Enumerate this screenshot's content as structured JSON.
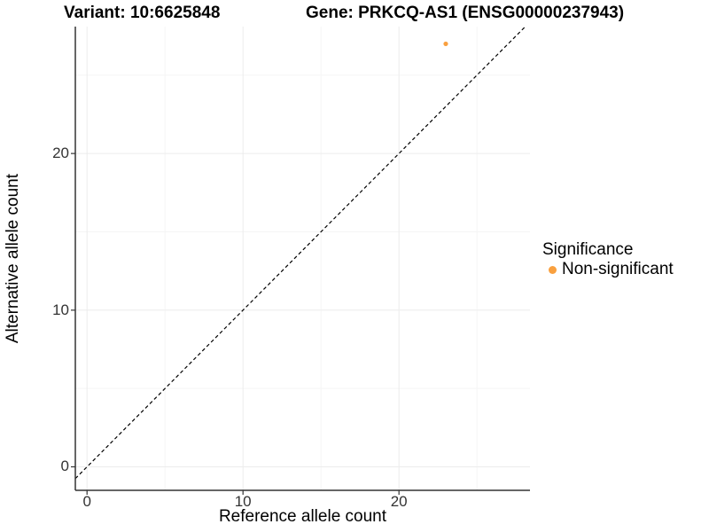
{
  "header": {
    "variant_title": "Variant: 10:6625848",
    "gene_title": "Gene: PRKCQ-AS1 (ENSG00000237943)"
  },
  "chart_data": {
    "type": "scatter",
    "xlabel": "Reference allele count",
    "ylabel": "Alternative allele count",
    "xlim": [
      -0.75,
      28.4
    ],
    "ylim": [
      -1.5,
      28.1
    ],
    "xticks": [
      0,
      10,
      20
    ],
    "yticks": [
      0,
      10,
      20
    ],
    "minor_xticks": [
      5,
      15,
      25
    ],
    "minor_yticks": [
      5,
      15,
      25
    ],
    "grid": true,
    "identity_line": {
      "style": "dashed",
      "slope": 1,
      "intercept": 0,
      "color": "#000000"
    },
    "series": [
      {
        "name": "Non-significant",
        "color": "#F9A03F",
        "points": [
          {
            "x": 23,
            "y": 27
          }
        ]
      }
    ],
    "legend": {
      "title": "Significance",
      "position": "right",
      "items": [
        {
          "label": "Non-significant",
          "color": "#F9A03F"
        }
      ]
    }
  },
  "colors": {
    "background": "#FFFFFF",
    "axis": "#333333",
    "tick_text": "#333333",
    "title_text": "#000000",
    "grid_major": "#ECECEC",
    "grid_minor": "#F5F5F5",
    "nonsignificant_orange": "#F9A03F",
    "identity_line": "#000000"
  }
}
